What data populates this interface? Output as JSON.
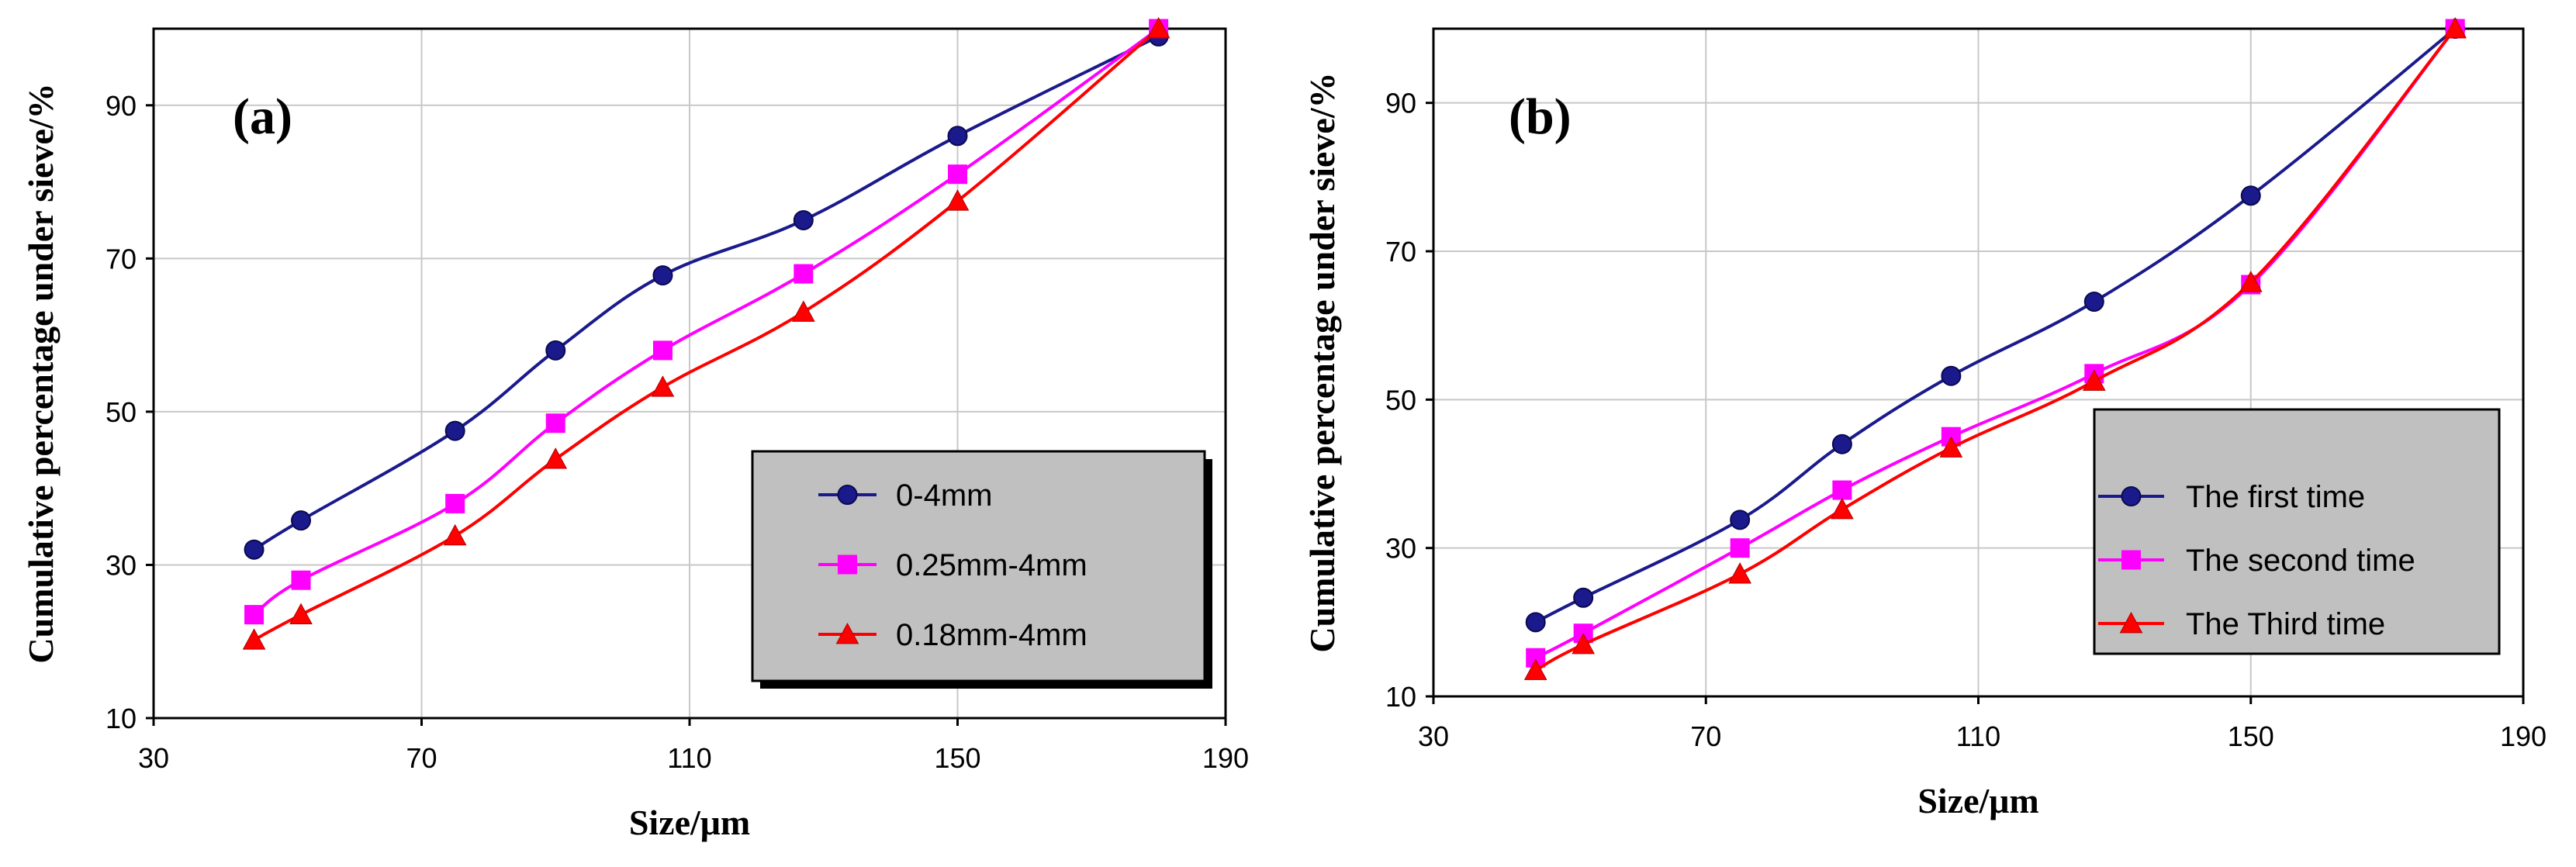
{
  "chart_data": [
    {
      "type": "line",
      "panel_label": "(a)",
      "xlabel": "Size/μm",
      "ylabel": "Cumulative percentage under sieve/%",
      "xlim": [
        30,
        190
      ],
      "ylim": [
        10,
        100
      ],
      "xticks": [
        30,
        70,
        110,
        150,
        190
      ],
      "yticks": [
        10,
        30,
        50,
        70,
        90
      ],
      "grid": true,
      "legend_position": "bottom-right",
      "series": [
        {
          "name": "0-4mm",
          "color": "#1a1a8c",
          "marker": "circle",
          "x": [
            45,
            52,
            75,
            90,
            106,
            127,
            150,
            180
          ],
          "y": [
            32,
            35.8,
            47.5,
            58,
            67.8,
            75,
            86,
            99
          ]
        },
        {
          "name": "0.25mm-4mm",
          "color": "#ff00ff",
          "marker": "square",
          "x": [
            45,
            52,
            75,
            90,
            106,
            127,
            150,
            180
          ],
          "y": [
            23.5,
            28,
            38,
            48.5,
            58,
            68,
            81,
            100
          ]
        },
        {
          "name": "0.18mm-4mm",
          "color": "#ff0000",
          "marker": "triangle",
          "x": [
            45,
            52,
            75,
            90,
            106,
            127,
            150,
            180
          ],
          "y": [
            20.2,
            23.5,
            33.8,
            43.8,
            53.2,
            63,
            77.5,
            100
          ]
        }
      ]
    },
    {
      "type": "line",
      "panel_label": "(b)",
      "xlabel": "Size/μm",
      "ylabel": "Cumulative percentage under sieve/%",
      "xlim": [
        30,
        190
      ],
      "ylim": [
        10,
        100
      ],
      "xticks": [
        30,
        70,
        110,
        150,
        190
      ],
      "yticks": [
        10,
        30,
        50,
        70,
        90
      ],
      "grid": true,
      "legend_position": "bottom-right",
      "series": [
        {
          "name": "The first time",
          "color": "#1a1a8c",
          "marker": "circle",
          "x": [
            45,
            52,
            75,
            90,
            106,
            127,
            150,
            180
          ],
          "y": [
            20,
            23.3,
            33.8,
            44,
            53.2,
            63.2,
            77.5,
            100
          ]
        },
        {
          "name": "The second time",
          "color": "#ff00ff",
          "marker": "square",
          "x": [
            45,
            52,
            75,
            90,
            106,
            127,
            150,
            180
          ],
          "y": [
            15.2,
            18.5,
            30,
            37.8,
            45,
            53.5,
            65.5,
            100
          ]
        },
        {
          "name": "The Third time",
          "color": "#ff0000",
          "marker": "triangle",
          "x": [
            45,
            52,
            75,
            90,
            106,
            127,
            150,
            180
          ],
          "y": [
            13.5,
            17,
            26.5,
            35.2,
            43.5,
            52.5,
            65.8,
            100
          ]
        }
      ]
    }
  ]
}
